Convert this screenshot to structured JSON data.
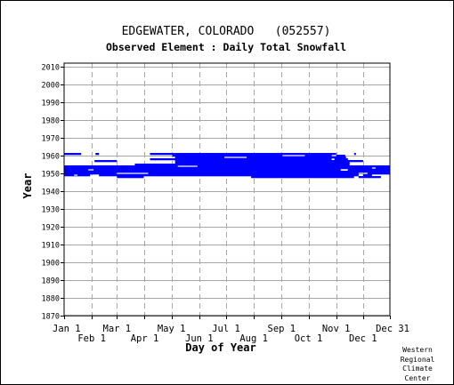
{
  "chart_data": {
    "type": "heatmap",
    "title": "EDGEWATER, COLORADO   (052557)",
    "subtitle": "Observed Element : Daily Total Snowfall",
    "xlabel": "Day of Year",
    "ylabel": "Year",
    "xlim": [
      1,
      365
    ],
    "ylim": [
      1870,
      2012
    ],
    "grid": true,
    "series_color": "#0000ff",
    "x_ticks_upper": [
      {
        "label": "Jan 1",
        "day": 1
      },
      {
        "label": "Mar 1",
        "day": 60
      },
      {
        "label": "May 1",
        "day": 121
      },
      {
        "label": "Jul 1",
        "day": 182
      },
      {
        "label": "Sep 1",
        "day": 244
      },
      {
        "label": "Nov 1",
        "day": 305
      },
      {
        "label": "Dec 31",
        "day": 365
      }
    ],
    "x_ticks_lower": [
      {
        "label": "Feb 1",
        "day": 32
      },
      {
        "label": "Apr 1",
        "day": 91
      },
      {
        "label": "Jun 1",
        "day": 152
      },
      {
        "label": "Aug 1",
        "day": 213
      },
      {
        "label": "Oct 1",
        "day": 274
      },
      {
        "label": "Dec 1",
        "day": 335
      }
    ],
    "y_ticks": [
      1870,
      1880,
      1890,
      1900,
      1910,
      1920,
      1930,
      1940,
      1950,
      1960,
      1970,
      1980,
      1990,
      2000,
      2010
    ],
    "observations": [
      {
        "year": 1961,
        "start": 1,
        "end": 20
      },
      {
        "year": 1961,
        "start": 36,
        "end": 40
      },
      {
        "year": 1961,
        "start": 97,
        "end": 125
      },
      {
        "year": 1961,
        "start": 125,
        "end": 305
      },
      {
        "year": 1961,
        "start": 325,
        "end": 327
      },
      {
        "year": 1960,
        "start": 122,
        "end": 300
      },
      {
        "year": 1960,
        "start": 305,
        "end": 315
      },
      {
        "year": 1959,
        "start": 125,
        "end": 300
      },
      {
        "year": 1959,
        "start": 300,
        "end": 316
      },
      {
        "year": 1958,
        "start": 97,
        "end": 300
      },
      {
        "year": 1958,
        "start": 303,
        "end": 318
      },
      {
        "year": 1957,
        "start": 35,
        "end": 60
      },
      {
        "year": 1957,
        "start": 125,
        "end": 335
      },
      {
        "year": 1956,
        "start": 125,
        "end": 320
      },
      {
        "year": 1955,
        "start": 80,
        "end": 320
      },
      {
        "year": 1954,
        "start": 1,
        "end": 365
      },
      {
        "year": 1953,
        "start": 1,
        "end": 365
      },
      {
        "year": 1952,
        "start": 1,
        "end": 310
      },
      {
        "year": 1952,
        "start": 318,
        "end": 365
      },
      {
        "year": 1951,
        "start": 1,
        "end": 365
      },
      {
        "year": 1950,
        "start": 1,
        "end": 60
      },
      {
        "year": 1950,
        "start": 60,
        "end": 330
      },
      {
        "year": 1950,
        "start": 340,
        "end": 365
      },
      {
        "year": 1949,
        "start": 1,
        "end": 30
      },
      {
        "year": 1949,
        "start": 40,
        "end": 330
      },
      {
        "year": 1949,
        "start": 335,
        "end": 345
      },
      {
        "year": 1948,
        "start": 60,
        "end": 90
      },
      {
        "year": 1948,
        "start": 210,
        "end": 325
      },
      {
        "year": 1948,
        "start": 330,
        "end": 355
      }
    ],
    "gaps": [
      {
        "year": 1959,
        "start": 180,
        "end": 205
      },
      {
        "year": 1960,
        "start": 245,
        "end": 270
      },
      {
        "year": 1954,
        "start": 128,
        "end": 150
      },
      {
        "year": 1952,
        "start": 28,
        "end": 34
      },
      {
        "year": 1950,
        "start": 60,
        "end": 95
      },
      {
        "year": 1949,
        "start": 12,
        "end": 16
      },
      {
        "year": 1953,
        "start": 345,
        "end": 349
      }
    ]
  },
  "footer": {
    "credit_lines": [
      "Western",
      "Regional",
      "Climate",
      "Center"
    ]
  }
}
